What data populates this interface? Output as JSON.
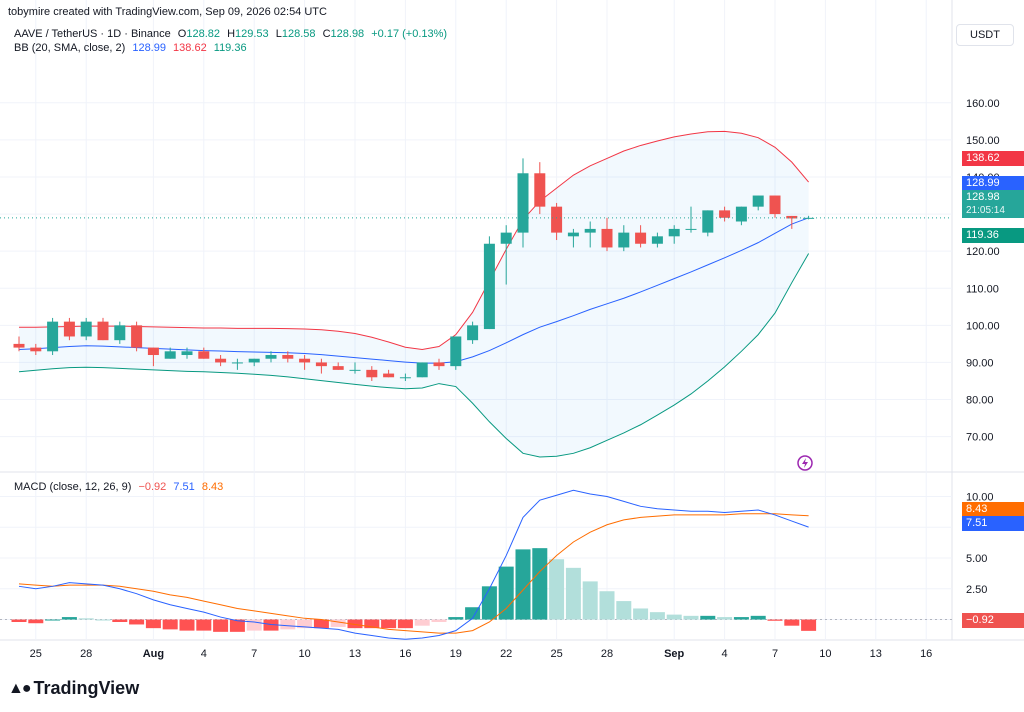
{
  "header": {
    "title": "tobymire created with TradingView.com, Sep 09, 2026 02:54 UTC"
  },
  "quote_button": "USDT",
  "main_legend": {
    "symbol": "AAVE / TetherUS · 1D · Binance",
    "o_label": "O",
    "o": "128.82",
    "h_label": "H",
    "h": "129.53",
    "l_label": "L",
    "l": "128.58",
    "c_label": "C",
    "c": "128.98",
    "change": "+0.17 (+0.13%)"
  },
  "bb_legend": {
    "label": "BB (20, SMA, close, 2)",
    "basis": "128.99",
    "upper": "138.62",
    "lower": "119.36"
  },
  "macd_legend": {
    "label": "MACD (close, 12, 26, 9)",
    "hist": "−0.92",
    "macd": "7.51",
    "signal": "8.43"
  },
  "price_tags": {
    "upper": "138.62",
    "basis": "128.99",
    "last": "128.98",
    "countdown": "21:05:14",
    "lower": "119.36"
  },
  "macd_tags": {
    "signal": "8.43",
    "macd": "7.51",
    "hist": "−0.92"
  },
  "brand": "TradingView",
  "colors": {
    "up": "#26a69a",
    "down": "#ef5350",
    "upper_band": "#f23645",
    "basis": "#2962ff",
    "lower_band": "#089981",
    "macd": "#2962ff",
    "signal": "#ff6d00",
    "fill": "#2196f3"
  },
  "chart_data": {
    "type": "candlestick",
    "price_axis": {
      "ticks": [
        70,
        80,
        90,
        100,
        110,
        120,
        130,
        140,
        150,
        160
      ],
      "labels": [
        "70.00",
        "80.00",
        "90.00",
        "100.00",
        "110.00",
        "120.00",
        "130.00",
        "140.00",
        "150.00",
        "160.00"
      ],
      "ylim": [
        61,
        171
      ]
    },
    "macd_axis": {
      "ticks": [
        0,
        2.5,
        5,
        7.5,
        10
      ],
      "labels": [
        "0.00",
        "2.50",
        "5.00",
        "7.50",
        "10.00"
      ],
      "ylim": [
        -1.5,
        11.5
      ]
    },
    "x_ticks": [
      {
        "i": 1,
        "label": "25"
      },
      {
        "i": 4,
        "label": "28"
      },
      {
        "i": 8,
        "label": "Aug"
      },
      {
        "i": 11,
        "label": "4"
      },
      {
        "i": 14,
        "label": "7"
      },
      {
        "i": 17,
        "label": "10"
      },
      {
        "i": 20,
        "label": "13"
      },
      {
        "i": 23,
        "label": "16"
      },
      {
        "i": 26,
        "label": "19"
      },
      {
        "i": 29,
        "label": "22"
      },
      {
        "i": 32,
        "label": "25"
      },
      {
        "i": 35,
        "label": "28"
      },
      {
        "i": 39,
        "label": "Sep"
      },
      {
        "i": 42,
        "label": "4"
      },
      {
        "i": 45,
        "label": "7"
      },
      {
        "i": 48,
        "label": "10"
      },
      {
        "i": 51,
        "label": "13"
      },
      {
        "i": 54,
        "label": "16"
      }
    ],
    "candles": [
      {
        "o": 95,
        "h": 97,
        "l": 93,
        "c": 94
      },
      {
        "o": 94,
        "h": 95,
        "l": 92,
        "c": 93
      },
      {
        "o": 93,
        "h": 102,
        "l": 92,
        "c": 101
      },
      {
        "o": 101,
        "h": 102,
        "l": 96,
        "c": 97
      },
      {
        "o": 97,
        "h": 102,
        "l": 96,
        "c": 101
      },
      {
        "o": 101,
        "h": 102,
        "l": 96,
        "c": 96
      },
      {
        "o": 96,
        "h": 101,
        "l": 95,
        "c": 100
      },
      {
        "o": 100,
        "h": 101,
        "l": 93,
        "c": 94
      },
      {
        "o": 94,
        "h": 94,
        "l": 89,
        "c": 92
      },
      {
        "o": 91,
        "h": 94,
        "l": 91,
        "c": 93
      },
      {
        "o": 92,
        "h": 94,
        "l": 91,
        "c": 93
      },
      {
        "o": 93,
        "h": 94,
        "l": 91,
        "c": 91
      },
      {
        "o": 91,
        "h": 92,
        "l": 89,
        "c": 90
      },
      {
        "o": 90,
        "h": 91,
        "l": 88,
        "c": 90
      },
      {
        "o": 90,
        "h": 91,
        "l": 89,
        "c": 91
      },
      {
        "o": 91,
        "h": 93,
        "l": 90,
        "c": 92
      },
      {
        "o": 92,
        "h": 93,
        "l": 90,
        "c": 91
      },
      {
        "o": 91,
        "h": 92,
        "l": 88,
        "c": 90
      },
      {
        "o": 90,
        "h": 91,
        "l": 87,
        "c": 89
      },
      {
        "o": 89,
        "h": 90,
        "l": 88,
        "c": 88
      },
      {
        "o": 88,
        "h": 90,
        "l": 87,
        "c": 88
      },
      {
        "o": 88,
        "h": 89,
        "l": 85,
        "c": 86
      },
      {
        "o": 87,
        "h": 88,
        "l": 86,
        "c": 86
      },
      {
        "o": 86,
        "h": 87,
        "l": 85,
        "c": 86
      },
      {
        "o": 86,
        "h": 90,
        "l": 86,
        "c": 90
      },
      {
        "o": 90,
        "h": 91,
        "l": 88,
        "c": 89
      },
      {
        "o": 89,
        "h": 97,
        "l": 88,
        "c": 97
      },
      {
        "o": 96,
        "h": 101,
        "l": 95,
        "c": 100
      },
      {
        "o": 99,
        "h": 124,
        "l": 99,
        "c": 122
      },
      {
        "o": 122,
        "h": 127,
        "l": 111,
        "c": 125
      },
      {
        "o": 125,
        "h": 145,
        "l": 121,
        "c": 141
      },
      {
        "o": 141,
        "h": 144,
        "l": 130,
        "c": 132
      },
      {
        "o": 132,
        "h": 133,
        "l": 123,
        "c": 125
      },
      {
        "o": 124,
        "h": 126,
        "l": 121,
        "c": 125
      },
      {
        "o": 125,
        "h": 128,
        "l": 121,
        "c": 126
      },
      {
        "o": 126,
        "h": 129,
        "l": 120,
        "c": 121
      },
      {
        "o": 121,
        "h": 127,
        "l": 120,
        "c": 125
      },
      {
        "o": 125,
        "h": 127,
        "l": 121,
        "c": 122
      },
      {
        "o": 122,
        "h": 125,
        "l": 121,
        "c": 124
      },
      {
        "o": 124,
        "h": 127,
        "l": 122,
        "c": 126
      },
      {
        "o": 126,
        "h": 132,
        "l": 125,
        "c": 126
      },
      {
        "o": 125,
        "h": 131,
        "l": 124,
        "c": 131
      },
      {
        "o": 131,
        "h": 132,
        "l": 128,
        "c": 129
      },
      {
        "o": 128,
        "h": 132,
        "l": 127,
        "c": 132
      },
      {
        "o": 132,
        "h": 135,
        "l": 131,
        "c": 135
      },
      {
        "o": 135,
        "h": 135,
        "l": 129,
        "c": 130
      },
      {
        "o": 129.5,
        "h": 129.5,
        "l": 126,
        "c": 128.82
      },
      {
        "o": 128.82,
        "h": 129.53,
        "l": 128.58,
        "c": 128.98
      }
    ],
    "bb_upper": [
      99.5,
      99.5,
      99.6,
      99.7,
      99.8,
      99.8,
      99.8,
      99.7,
      99.6,
      99.5,
      99.4,
      99.3,
      99.3,
      99.2,
      99.2,
      99.2,
      99.1,
      99.0,
      98.8,
      98.4,
      97.8,
      96.8,
      95.5,
      94.1,
      93.5,
      94.3,
      97.5,
      103.5,
      112,
      120.5,
      128.5,
      133.5,
      137,
      140.5,
      143,
      145,
      147,
      148.5,
      149.7,
      150.8,
      151.6,
      152.2,
      152.3,
      151.8,
      150.6,
      148,
      144,
      138.62
    ],
    "bb_basis": [
      93.5,
      93.7,
      94,
      94.3,
      94.5,
      94.4,
      94.2,
      94,
      93.8,
      93.6,
      93.4,
      93.2,
      93.1,
      92.9,
      92.8,
      92.7,
      92.6,
      92.4,
      92.1,
      91.7,
      91.3,
      90.9,
      90.5,
      90.1,
      89.8,
      89.8,
      90.2,
      91.5,
      93.2,
      95.3,
      97.5,
      99.5,
      101,
      102.6,
      104.3,
      105.8,
      107.3,
      109,
      110.8,
      112.6,
      114.4,
      116.3,
      118.2,
      120.2,
      122.3,
      124.8,
      127.3,
      128.99
    ],
    "bb_lower": [
      87.5,
      87.9,
      88.3,
      88.6,
      88.7,
      88.6,
      88.4,
      88.2,
      88,
      87.8,
      87.6,
      87.5,
      87.3,
      87.1,
      86.8,
      86.5,
      86.1,
      85.6,
      85.1,
      84.6,
      84.1,
      83.6,
      83.2,
      82.9,
      83.1,
      84.3,
      83.5,
      79,
      74,
      69.5,
      65.5,
      64.5,
      64.7,
      65.5,
      67,
      69,
      71,
      73.2,
      75.8,
      78.5,
      81.5,
      85,
      88.8,
      93,
      97.5,
      103.3,
      111.5,
      119.36
    ],
    "macd": [
      2.7,
      2.5,
      2.7,
      3.0,
      2.9,
      2.8,
      2.5,
      2.1,
      1.6,
      1.2,
      0.9,
      0.6,
      0.2,
      -0.1,
      -0.2,
      -0.4,
      -0.5,
      -0.6,
      -0.7,
      -0.8,
      -1.1,
      -1.3,
      -1.5,
      -1.6,
      -1.5,
      -1.3,
      -0.9,
      0.1,
      2.5,
      5.2,
      8.3,
      9.7,
      10.1,
      10.5,
      10.2,
      10.0,
      9.6,
      9.2,
      9.0,
      8.9,
      8.8,
      8.8,
      8.7,
      8.8,
      8.9,
      8.5,
      8.0,
      7.51
    ],
    "signal": [
      2.9,
      2.8,
      2.7,
      2.8,
      2.8,
      2.8,
      2.7,
      2.5,
      2.3,
      2.0,
      1.8,
      1.5,
      1.2,
      0.9,
      0.7,
      0.5,
      0.3,
      0.1,
      0.0,
      -0.2,
      -0.4,
      -0.6,
      -0.8,
      -0.9,
      -1.0,
      -1.1,
      -1.1,
      -0.9,
      -0.2,
      0.9,
      2.4,
      3.9,
      5.2,
      6.3,
      7.1,
      7.7,
      8.1,
      8.3,
      8.4,
      8.5,
      8.5,
      8.5,
      8.5,
      8.6,
      8.6,
      8.6,
      8.5,
      8.43
    ],
    "histogram": [
      -0.2,
      -0.3,
      0.0,
      0.2,
      0.1,
      0.0,
      -0.2,
      -0.4,
      -0.7,
      -0.8,
      -0.9,
      -0.9,
      -1.0,
      -1.0,
      -0.9,
      -0.9,
      -0.8,
      -0.7,
      -0.7,
      -0.6,
      -0.7,
      -0.7,
      -0.7,
      -0.7,
      -0.5,
      -0.2,
      0.2,
      1.0,
      2.7,
      4.3,
      5.7,
      5.8,
      4.9,
      4.2,
      3.1,
      2.3,
      1.5,
      0.9,
      0.6,
      0.4,
      0.3,
      0.3,
      0.2,
      0.2,
      0.3,
      -0.1,
      -0.5,
      -0.92
    ],
    "last_price": 128.98
  }
}
